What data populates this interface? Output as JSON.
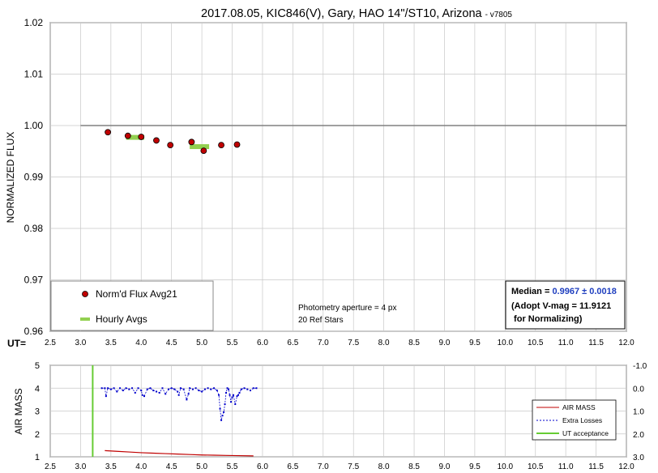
{
  "title": {
    "main": "2017.08.05, KIC846(V), Gary, HAO 14\"/ST10, Arizona",
    "version": "- v7805"
  },
  "colors": {
    "flux_marker": "#c00000",
    "hourly": "#92d050",
    "extra_losses": "#0000cc",
    "airmass": "#c00000",
    "ut_acceptance": "#66cc33",
    "median_value": "#1f3fbf",
    "reference_line": "#808080",
    "grid": "#c8c8c8"
  },
  "chart_data": [
    {
      "type": "scatter",
      "ylabel": "NORMALIZED FLUX",
      "xlabel_prefix": "UT=",
      "xlim": [
        2.5,
        12.0
      ],
      "ylim": [
        0.96,
        1.02
      ],
      "x_ticks": [
        "2.5",
        "3.0",
        "3.5",
        "4.0",
        "4.5",
        "5.0",
        "5.5",
        "6.0",
        "6.5",
        "7.0",
        "7.5",
        "8.0",
        "8.5",
        "9.0",
        "9.5",
        "10.0",
        "10.5",
        "11.0",
        "11.5",
        "12.0"
      ],
      "y_ticks": [
        "0.96",
        "0.97",
        "0.98",
        "0.99",
        "1.00",
        "1.01",
        "1.02"
      ],
      "grid": true,
      "reference_line": {
        "y": 1.0,
        "x_range": [
          3.0,
          12.0
        ]
      },
      "series": [
        {
          "name": "Norm'd Flux Avg21",
          "x": [
            3.45,
            3.78,
            4.0,
            4.25,
            4.48,
            4.83,
            5.03,
            5.32,
            5.58
          ],
          "y": [
            0.9987,
            0.998,
            0.9978,
            0.9971,
            0.9962,
            0.9968,
            0.9951,
            0.9962,
            0.9963
          ]
        },
        {
          "name": "Hourly Avgs",
          "segments": [
            {
              "x0": 3.75,
              "x1": 4.05,
              "y": 0.9977
            },
            {
              "x0": 4.8,
              "x1": 5.12,
              "y": 0.9959
            }
          ]
        }
      ],
      "annotations": {
        "photometry": "Photometry aperture = 4 px",
        "ref_stars": "20 Ref Stars",
        "median_label": "Median = ",
        "median_value": "0.9967 ± 0.0018",
        "adopt_line": "(Adopt V-mag = 11.9121",
        "normalizing_line": " for Normalizing)"
      },
      "legend_position": "bottom-left"
    },
    {
      "type": "line",
      "ylabel": "AIR MASS",
      "xlim": [
        2.5,
        12.0
      ],
      "ylim": [
        1,
        5
      ],
      "y2lim": [
        3.0,
        -1.0
      ],
      "x_ticks": [
        "2.5",
        "3.0",
        "3.5",
        "4.0",
        "4.5",
        "5.0",
        "5.5",
        "6.0",
        "6.5",
        "7.0",
        "7.5",
        "8.0",
        "8.5",
        "9.0",
        "9.5",
        "10.0",
        "10.5",
        "11.0",
        "11.5",
        "12.0"
      ],
      "y_ticks": [
        "1",
        "2",
        "3",
        "4",
        "5"
      ],
      "y2_ticks": [
        "3.0",
        "2.0",
        "1.0",
        "0.0",
        "-1.0"
      ],
      "grid": true,
      "ut_acceptance_x": 3.2,
      "series": [
        {
          "name": "AIR MASS",
          "x": [
            3.4,
            3.6,
            3.8,
            4.0,
            4.2,
            4.4,
            4.6,
            4.8,
            5.0,
            5.2,
            5.4,
            5.6,
            5.85
          ],
          "y": [
            1.27,
            1.24,
            1.21,
            1.18,
            1.16,
            1.14,
            1.12,
            1.1,
            1.08,
            1.07,
            1.06,
            1.05,
            1.04
          ]
        },
        {
          "name": "Extra Losses",
          "x": [
            3.35,
            3.4,
            3.42,
            3.45,
            3.5,
            3.55,
            3.6,
            3.65,
            3.7,
            3.75,
            3.8,
            3.85,
            3.9,
            3.95,
            4.0,
            4.02,
            4.05,
            4.1,
            4.15,
            4.2,
            4.25,
            4.3,
            4.35,
            4.4,
            4.45,
            4.5,
            4.55,
            4.6,
            4.62,
            4.65,
            4.7,
            4.75,
            4.78,
            4.8,
            4.85,
            4.9,
            4.95,
            5.0,
            5.05,
            5.1,
            5.15,
            5.2,
            5.25,
            5.28,
            5.3,
            5.32,
            5.34,
            5.36,
            5.38,
            5.4,
            5.42,
            5.44,
            5.46,
            5.48,
            5.5,
            5.52,
            5.55,
            5.58,
            5.6,
            5.62,
            5.65,
            5.7,
            5.75,
            5.8,
            5.85,
            5.9
          ],
          "y": [
            0.0,
            0.0,
            0.35,
            0.0,
            0.05,
            0.0,
            0.15,
            0.0,
            0.1,
            0.0,
            0.05,
            0.0,
            0.2,
            0.0,
            0.1,
            0.3,
            0.35,
            0.05,
            0.0,
            0.1,
            0.15,
            0.2,
            0.0,
            0.25,
            0.05,
            0.0,
            0.05,
            0.15,
            0.3,
            0.0,
            0.05,
            0.5,
            0.25,
            0.0,
            0.05,
            0.0,
            0.1,
            0.15,
            0.05,
            0.0,
            0.05,
            0.0,
            0.1,
            0.3,
            0.9,
            1.4,
            1.2,
            1.05,
            0.7,
            0.2,
            0.0,
            0.05,
            0.3,
            0.6,
            0.4,
            0.3,
            0.7,
            0.35,
            0.3,
            0.2,
            0.05,
            0.0,
            0.05,
            0.1,
            0.0,
            0.0
          ]
        },
        {
          "name": "UT acceptance"
        }
      ],
      "legend_position": "bottom-right"
    }
  ]
}
